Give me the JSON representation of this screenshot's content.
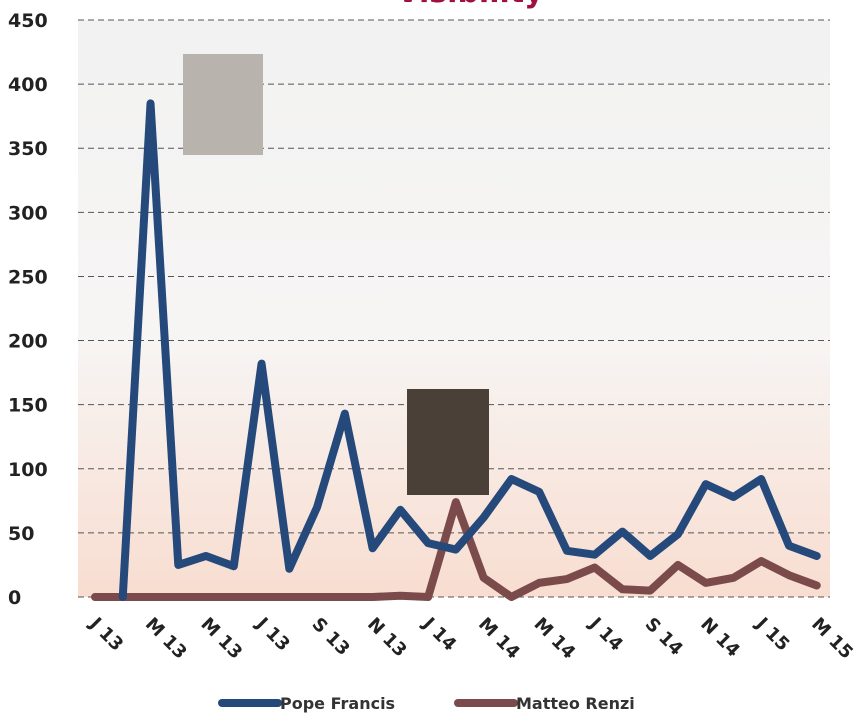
{
  "chart_data": {
    "type": "line",
    "title": "Visibility",
    "categories": [
      "J 13",
      null,
      "M 13",
      null,
      "M 13",
      null,
      "J 13",
      null,
      "S 13",
      null,
      "N 13",
      null,
      "J 14",
      null,
      "M 14",
      null,
      "M 14",
      null,
      "J 14",
      null,
      "S 14",
      null,
      "N 14",
      null,
      "J 15",
      null,
      "M 15"
    ],
    "series": [
      {
        "name": "Pope Francis",
        "color": "#24497a",
        "values": [
          null,
          0,
          385,
          25,
          32,
          24,
          182,
          22,
          70,
          143,
          38,
          68,
          42,
          37,
          62,
          92,
          82,
          36,
          33,
          51,
          32,
          49,
          88,
          78,
          92,
          40,
          32
        ]
      },
      {
        "name": "Matteo Renzi",
        "color": "#7b4b4b",
        "values": [
          0,
          0,
          0,
          0,
          0,
          0,
          0,
          0,
          0,
          0,
          0,
          1,
          0,
          74,
          15,
          0,
          11,
          14,
          23,
          6,
          5,
          25,
          11,
          15,
          28,
          17,
          9
        ]
      }
    ],
    "ylim": [
      0,
      450
    ],
    "yticks": [
      0,
      50,
      100,
      150,
      200,
      250,
      300,
      350,
      400,
      450
    ],
    "grid": true
  }
}
